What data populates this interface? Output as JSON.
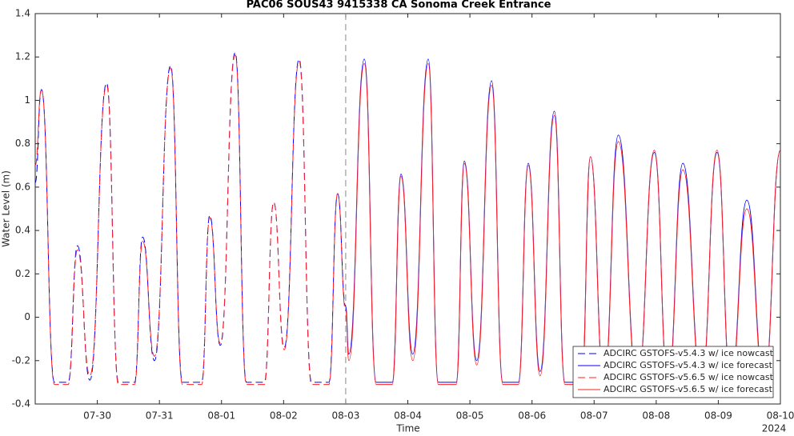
{
  "chart_data": {
    "type": "line",
    "title": "PAC06 SOUS43 9415338 CA Sonoma Creek Entrance",
    "xlabel": "Time",
    "ylabel": "Water Level (m)",
    "x_annotation": "2024",
    "xlim": [
      211,
      223
    ],
    "ylim": [
      -0.4,
      1.4
    ],
    "xticks": [
      {
        "value": 212,
        "label": "07-30"
      },
      {
        "value": 213,
        "label": "07-31"
      },
      {
        "value": 214,
        "label": "08-01"
      },
      {
        "value": 215,
        "label": "08-02"
      },
      {
        "value": 216,
        "label": "08-03"
      },
      {
        "value": 217,
        "label": "08-04"
      },
      {
        "value": 218,
        "label": "08-05"
      },
      {
        "value": 219,
        "label": "08-06"
      },
      {
        "value": 220,
        "label": "08-07"
      },
      {
        "value": 221,
        "label": "08-08"
      },
      {
        "value": 222,
        "label": "08-09"
      },
      {
        "value": 223,
        "label": "08-10"
      }
    ],
    "yticks": [
      -0.4,
      -0.2,
      0,
      0.2,
      0.4,
      0.6,
      0.8,
      1,
      1.2,
      1.4
    ],
    "vline": 216,
    "grid": false,
    "legend": "lower right",
    "series": [
      {
        "name": "ADCIRC GSTOFS-v5.4.3  w/ ice nowcast",
        "color": "#0000ff",
        "linestyle": "dashed",
        "x": [
          211.0,
          211.1,
          211.31,
          211.53,
          211.68,
          211.88,
          212.15,
          212.34,
          212.6,
          212.73,
          212.92,
          213.18,
          213.37,
          213.68,
          213.81,
          213.98,
          214.22,
          214.4,
          214.69,
          214.84,
          215.01,
          215.25,
          215.45,
          215.73,
          215.87,
          216.0
        ],
        "values": [
          0.62,
          1.05,
          -0.3,
          -0.3,
          0.33,
          -0.29,
          1.08,
          -0.3,
          -0.3,
          0.37,
          -0.2,
          1.16,
          -0.3,
          -0.3,
          0.47,
          -0.13,
          1.22,
          -0.3,
          -0.3,
          0.53,
          -0.14,
          1.19,
          -0.3,
          -0.3,
          0.57,
          0.05
        ]
      },
      {
        "name": "ADCIRC GSTOFS-v5.4.3  w/ ice forecast",
        "color": "#0000ff",
        "linestyle": "solid",
        "x": [
          216.0,
          216.05,
          216.3,
          216.49,
          216.75,
          216.89,
          217.08,
          217.33,
          217.49,
          217.78,
          217.91,
          218.11,
          218.35,
          218.53,
          218.78,
          218.94,
          219.13,
          219.36,
          219.53,
          219.8,
          219.94,
          220.16,
          220.39,
          220.7,
          220.97,
          221.19,
          221.43,
          221.73,
          221.98,
          222.2,
          222.46,
          222.74,
          223.0
        ],
        "values": [
          0.05,
          -0.17,
          1.19,
          -0.3,
          -0.3,
          0.66,
          -0.17,
          1.19,
          -0.3,
          -0.3,
          0.72,
          -0.2,
          1.09,
          -0.3,
          -0.3,
          0.71,
          -0.25,
          0.95,
          -0.3,
          -0.3,
          0.74,
          -0.3,
          0.84,
          -0.3,
          0.76,
          -0.3,
          0.71,
          -0.3,
          0.76,
          -0.3,
          0.54,
          -0.3,
          0.77
        ]
      },
      {
        "name": "ADCIRC GSTOFS-v5.6.5  w/ ice nowcast",
        "color": "#ff2020",
        "linestyle": "dashed",
        "x": [
          211.0,
          211.1,
          211.31,
          211.53,
          211.68,
          211.88,
          212.15,
          212.34,
          212.6,
          212.73,
          212.92,
          213.18,
          213.37,
          213.68,
          213.81,
          213.98,
          214.22,
          214.4,
          214.69,
          214.84,
          215.01,
          215.25,
          215.45,
          215.73,
          215.87,
          216.0
        ],
        "values": [
          0.7,
          1.05,
          -0.31,
          -0.31,
          0.31,
          -0.27,
          1.07,
          -0.31,
          -0.31,
          0.35,
          -0.18,
          1.15,
          -0.31,
          -0.31,
          0.46,
          -0.12,
          1.21,
          -0.31,
          -0.31,
          0.53,
          -0.15,
          1.18,
          -0.31,
          -0.31,
          0.57,
          0.03
        ]
      },
      {
        "name": "ADCIRC GSTOFS-v5.6.5  w/ ice forecast",
        "color": "#ff2020",
        "linestyle": "solid",
        "x": [
          216.0,
          216.05,
          216.3,
          216.49,
          216.75,
          216.89,
          217.08,
          217.33,
          217.49,
          217.78,
          217.91,
          218.11,
          218.35,
          218.53,
          218.78,
          218.94,
          219.13,
          219.36,
          219.53,
          219.8,
          219.94,
          220.16,
          220.39,
          220.7,
          220.97,
          221.19,
          221.43,
          221.73,
          221.98,
          222.2,
          222.46,
          222.74,
          223.0
        ],
        "values": [
          0.03,
          -0.2,
          1.17,
          -0.31,
          -0.31,
          0.65,
          -0.2,
          1.17,
          -0.31,
          -0.31,
          0.71,
          -0.22,
          1.07,
          -0.31,
          -0.31,
          0.7,
          -0.27,
          0.93,
          -0.31,
          -0.31,
          0.74,
          -0.31,
          0.81,
          -0.31,
          0.77,
          -0.31,
          0.68,
          -0.31,
          0.77,
          -0.31,
          0.5,
          -0.31,
          0.77
        ]
      }
    ]
  }
}
